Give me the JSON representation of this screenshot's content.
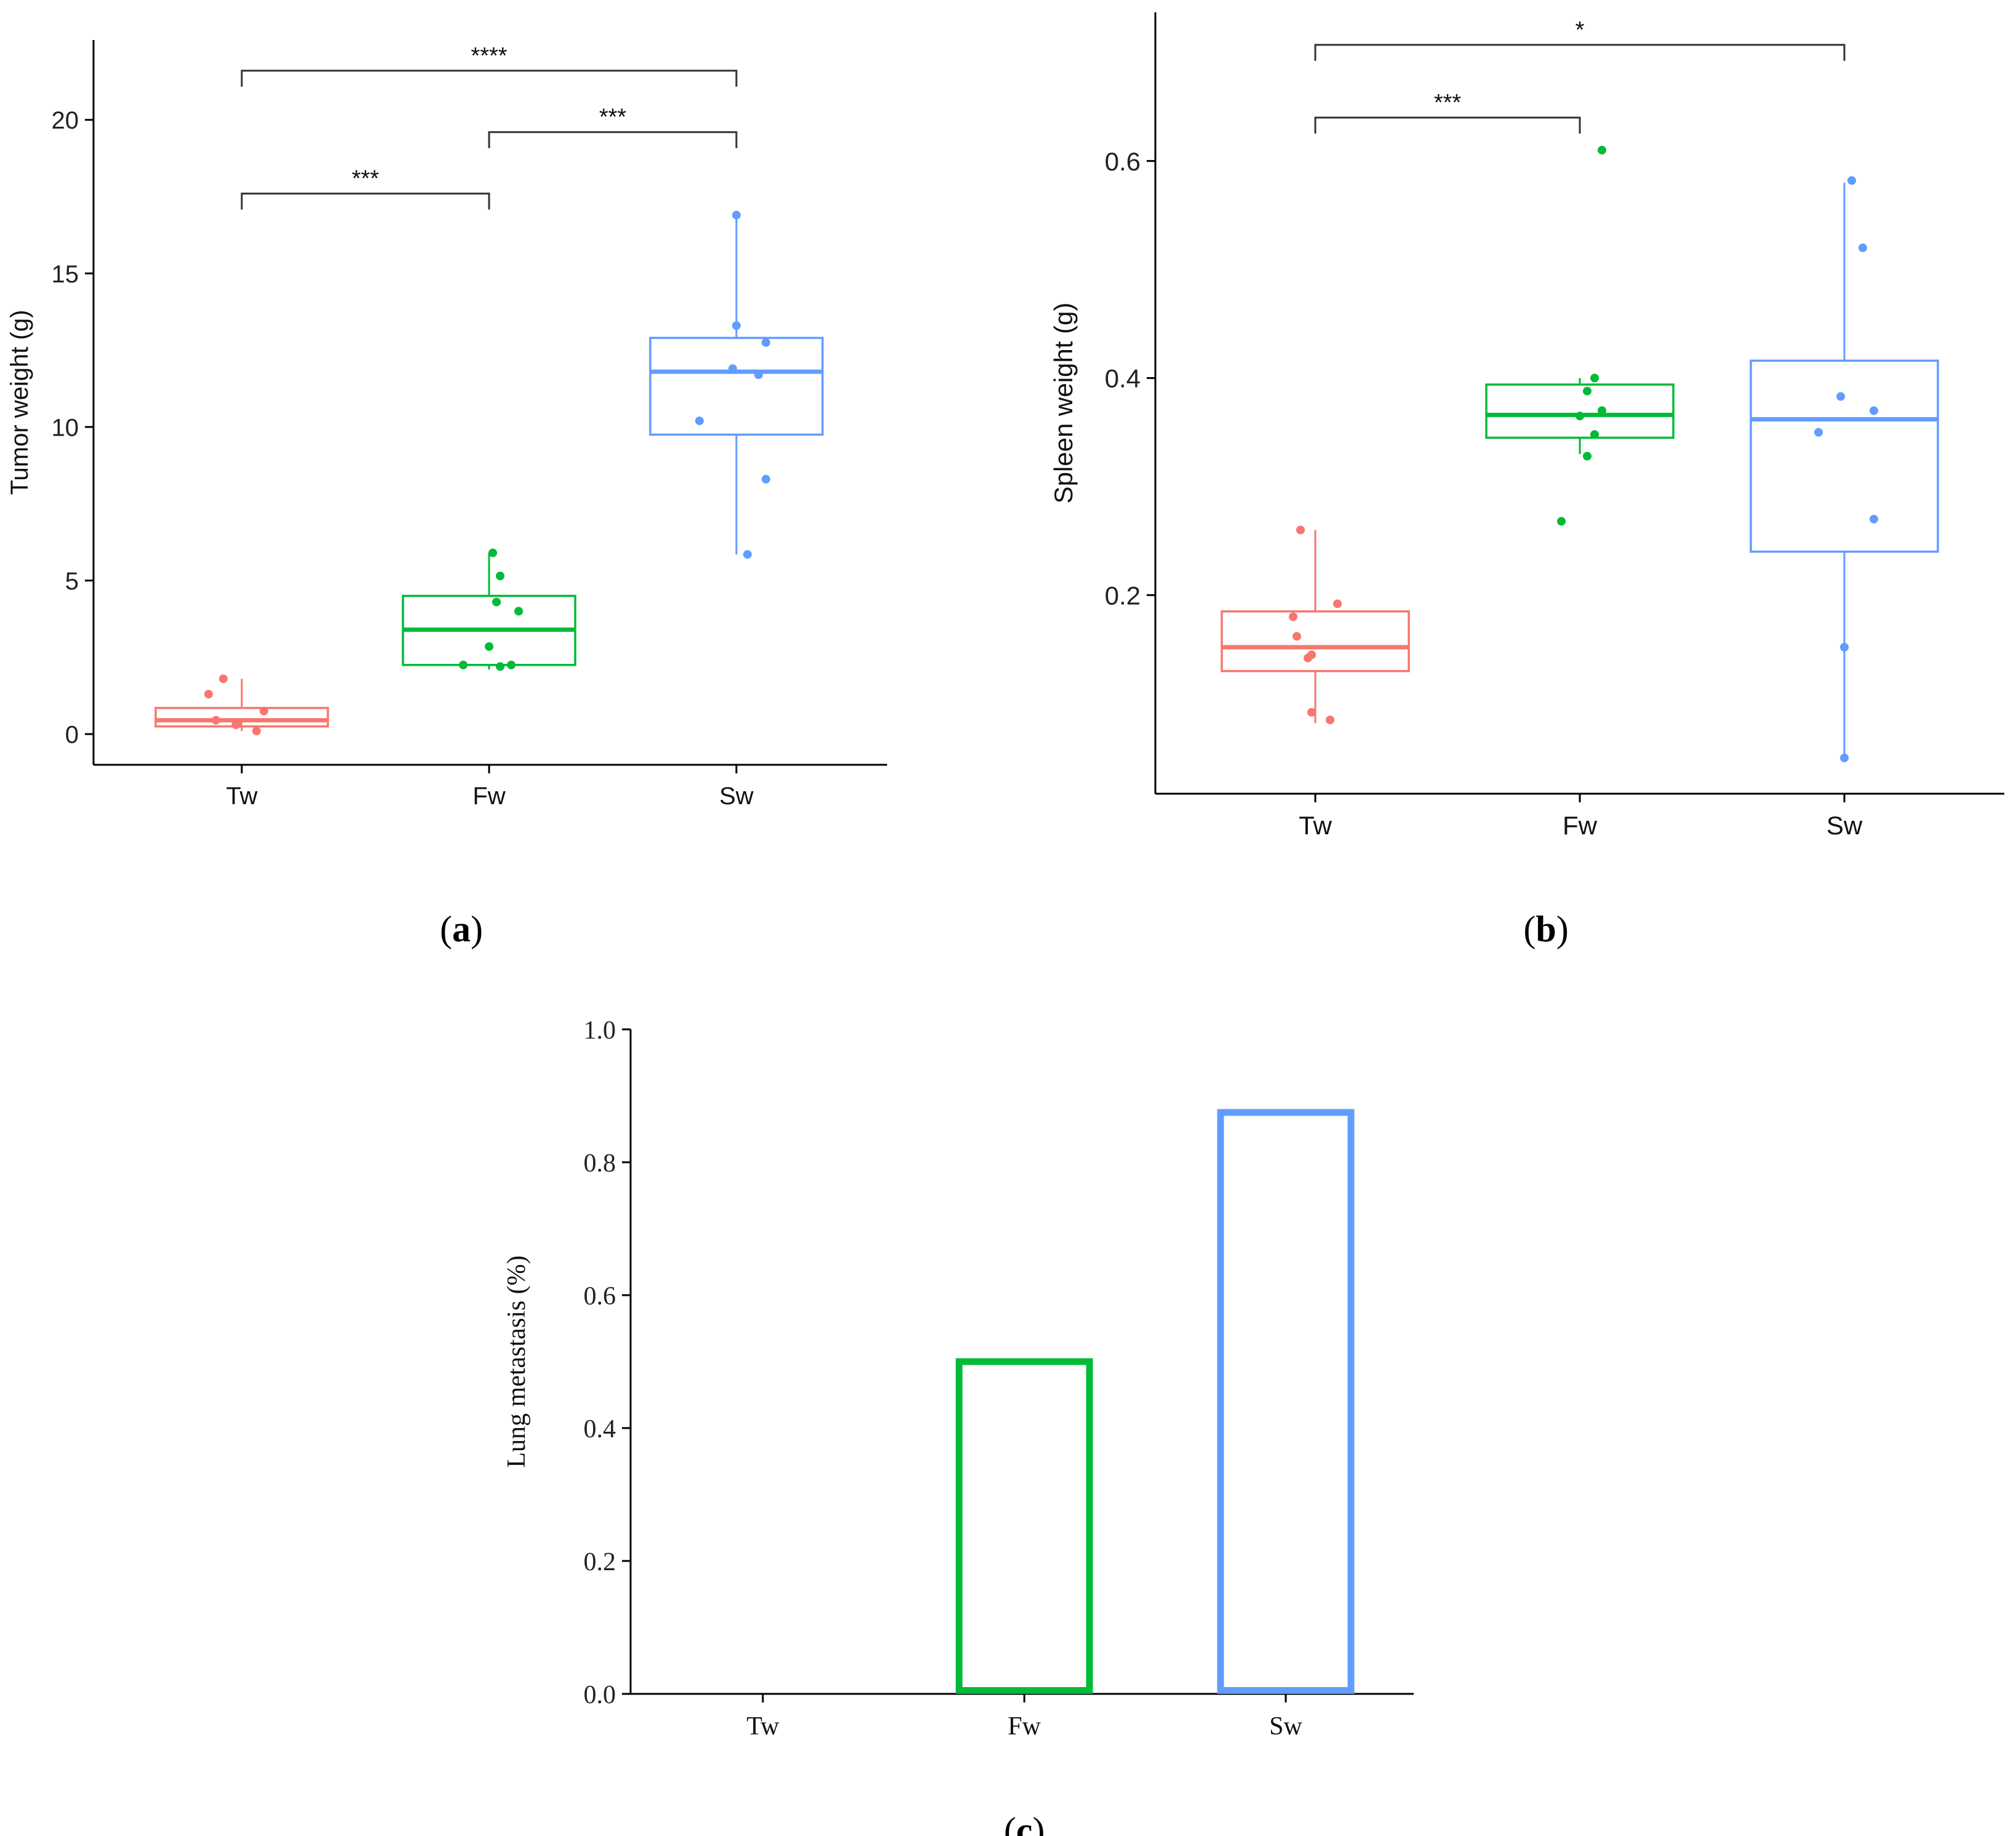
{
  "colors": {
    "Tw": "#f8766d",
    "Fw": "#00ba38",
    "Sw": "#619cff",
    "axis": "#000000",
    "bracket": "#333333"
  },
  "chart_data": [
    {
      "id": "a",
      "type": "box",
      "panel_label": "(a)",
      "panel_letter": "a",
      "ylabel": "Tumor weight (g)",
      "categories": [
        "Tw",
        "Fw",
        "Sw"
      ],
      "ylim": [
        -1,
        22.6
      ],
      "yticks": [
        0,
        5,
        10,
        15,
        20
      ],
      "boxes": [
        {
          "q1": 0.25,
          "median": 0.45,
          "q3": 0.85,
          "whisker_low": 0.1,
          "whisker_high": 1.8
        },
        {
          "q1": 2.25,
          "median": 3.4,
          "q3": 4.5,
          "whisker_low": 2.1,
          "whisker_high": 5.9
        },
        {
          "q1": 9.75,
          "median": 11.8,
          "q3": 12.9,
          "whisker_low": 5.85,
          "whisker_high": 16.9
        }
      ],
      "points": [
        [
          [
            -0.25,
            1.8
          ],
          [
            -0.45,
            1.3
          ],
          [
            -0.35,
            0.45
          ],
          [
            -0.05,
            0.35
          ],
          [
            -0.08,
            0.3
          ],
          [
            0.3,
            0.75
          ],
          [
            0.2,
            0.1
          ]
        ],
        [
          [
            0.05,
            5.9
          ],
          [
            0.15,
            5.15
          ],
          [
            0.1,
            4.3
          ],
          [
            0.4,
            4.0
          ],
          [
            0.0,
            2.85
          ],
          [
            -0.35,
            2.25
          ],
          [
            0.15,
            2.2
          ],
          [
            0.3,
            2.25
          ]
        ],
        [
          [
            0.0,
            16.9
          ],
          [
            0.0,
            13.3
          ],
          [
            0.4,
            12.75
          ],
          [
            -0.05,
            11.9
          ],
          [
            0.3,
            11.7
          ],
          [
            -0.5,
            10.2
          ],
          [
            0.4,
            8.3
          ],
          [
            0.15,
            5.85
          ]
        ]
      ],
      "comparisons": [
        {
          "from": 0,
          "to": 1,
          "y": 17.6,
          "label": "***"
        },
        {
          "from": 1,
          "to": 2,
          "y": 19.6,
          "label": "***"
        },
        {
          "from": 0,
          "to": 2,
          "y": 21.6,
          "label": "****"
        }
      ]
    },
    {
      "id": "b",
      "type": "box",
      "panel_label": "(b)",
      "panel_letter": "b",
      "ylabel": "Spleen weight (g)",
      "categories": [
        "Tw",
        "Fw",
        "Sw"
      ],
      "ylim": [
        0.017,
        0.737
      ],
      "yticks": [
        0.2,
        0.4,
        0.6
      ],
      "ytick_labels": [
        "0.2",
        "0.4",
        "0.6"
      ],
      "boxes": [
        {
          "q1": 0.13,
          "median": 0.152,
          "q3": 0.185,
          "whisker_low": 0.082,
          "whisker_high": 0.26
        },
        {
          "q1": 0.345,
          "median": 0.366,
          "q3": 0.394,
          "whisker_low": 0.33,
          "whisker_high": 0.4
        },
        {
          "q1": 0.24,
          "median": 0.362,
          "q3": 0.416,
          "whisker_low": 0.05,
          "whisker_high": 0.58
        }
      ],
      "points": [
        [
          [
            -0.2,
            0.26
          ],
          [
            0.3,
            0.192
          ],
          [
            -0.3,
            0.18
          ],
          [
            -0.25,
            0.162
          ],
          [
            -0.05,
            0.145
          ],
          [
            -0.1,
            0.142
          ],
          [
            -0.05,
            0.092
          ],
          [
            0.2,
            0.085
          ]
        ],
        [
          [
            0.3,
            0.61
          ],
          [
            0.2,
            0.4
          ],
          [
            0.1,
            0.388
          ],
          [
            0.3,
            0.37
          ],
          [
            0.0,
            0.365
          ],
          [
            0.2,
            0.348
          ],
          [
            0.1,
            0.328
          ],
          [
            -0.25,
            0.268
          ]
        ],
        [
          [
            0.1,
            0.582
          ],
          [
            0.25,
            0.52
          ],
          [
            -0.05,
            0.383
          ],
          [
            0.4,
            0.37
          ],
          [
            -0.35,
            0.35
          ],
          [
            0.4,
            0.27
          ],
          [
            0.0,
            0.152
          ],
          [
            0.0,
            0.05
          ]
        ]
      ],
      "comparisons": [
        {
          "from": 0,
          "to": 1,
          "y": 0.64,
          "label": "***"
        },
        {
          "from": 0,
          "to": 2,
          "y": 0.707,
          "label": "*"
        }
      ]
    },
    {
      "id": "c",
      "type": "bar",
      "panel_label": "(c)",
      "panel_letter": "c",
      "ylabel": "Lung metastasis (%)",
      "categories": [
        "Tw",
        "Fw",
        "Sw"
      ],
      "values": [
        0.0,
        0.5,
        0.875
      ],
      "ylim": [
        0,
        1
      ],
      "yticks": [
        0,
        0.2,
        0.4,
        0.6,
        0.8,
        1.0
      ],
      "ytick_labels": [
        "0.0",
        "0.2",
        "0.4",
        "0.6",
        "0.8",
        "1.0"
      ]
    }
  ]
}
